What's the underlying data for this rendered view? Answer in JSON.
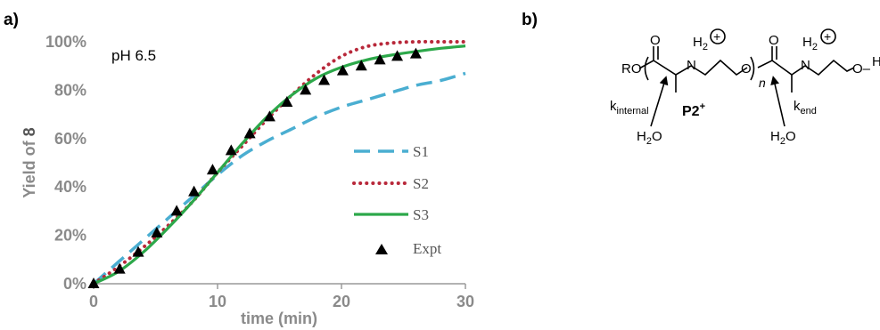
{
  "panels": {
    "a": "a)",
    "b": "b)"
  },
  "chart_data": {
    "type": "line",
    "annotation": "pH 6.5",
    "xlabel": "time (min)",
    "ylabel_prefix": "Yield of ",
    "ylabel_bold": "8",
    "xlim": [
      0,
      30
    ],
    "ylim": [
      0,
      100
    ],
    "xticks": [
      0,
      10,
      20,
      30
    ],
    "yticks": [
      0,
      20,
      40,
      60,
      80,
      100
    ],
    "ytick_labels": [
      "0%",
      "20%",
      "40%",
      "60%",
      "80%",
      "100%"
    ],
    "grid": false,
    "legend_position": "right",
    "series": [
      {
        "name": "S1",
        "style": "dashed",
        "color": "#4aaed1",
        "x": [
          0,
          2,
          4,
          6,
          8,
          10,
          12,
          14,
          16,
          18,
          20,
          22,
          24,
          26,
          28,
          30
        ],
        "y": [
          0,
          9,
          18,
          27,
          36,
          45,
          53,
          59,
          64,
          69,
          73,
          76,
          79,
          82,
          84,
          87
        ]
      },
      {
        "name": "S2",
        "style": "dotted",
        "color": "#b8283a",
        "x": [
          0,
          2,
          4,
          6,
          8,
          10,
          12,
          14,
          16,
          18,
          20,
          22,
          24,
          26,
          28,
          30
        ],
        "y": [
          0,
          7,
          15,
          24,
          34,
          46,
          57,
          68,
          78,
          87,
          94,
          98,
          99.5,
          100,
          100,
          100
        ]
      },
      {
        "name": "S3",
        "style": "solid",
        "color": "#2ca84a",
        "x": [
          0,
          2,
          4,
          6,
          8,
          10,
          12,
          14,
          16,
          18,
          20,
          22,
          24,
          26,
          28,
          30
        ],
        "y": [
          0,
          5,
          13,
          23,
          34,
          46,
          58,
          69,
          78,
          85,
          89.5,
          92.5,
          94.5,
          96,
          97.3,
          98.3
        ]
      },
      {
        "name": "Expt",
        "style": "marker",
        "color": "#000000",
        "x": [
          0,
          2.1,
          3.6,
          5.1,
          6.7,
          8.1,
          9.6,
          11.1,
          12.6,
          14.2,
          15.6,
          17.1,
          18.6,
          20.1,
          21.6,
          23.1,
          24.5,
          26.0
        ],
        "y": [
          0,
          6,
          13,
          21,
          30,
          38,
          47,
          55,
          62,
          69,
          75,
          80,
          84,
          88,
          90,
          92.5,
          94,
          95
        ]
      }
    ]
  },
  "structure": {
    "label": "P2",
    "label_charge": "+",
    "ro": "RO",
    "o_atoms": [
      "O",
      "O"
    ],
    "o_ether": "O",
    "o_end": "O–",
    "h2": [
      "H",
      "H"
    ],
    "h2_sub": [
      "2",
      "2"
    ],
    "n_atoms": [
      "N",
      "N"
    ],
    "n_repeat": "n",
    "charge": [
      "+",
      "+"
    ],
    "end_atom": "H",
    "k_internal_main": "k",
    "k_internal_sub": "internal",
    "k_end_main": "k",
    "k_end_sub": "end",
    "water_1": "H",
    "water_1_sub": "2",
    "water_1_tail": "O",
    "water_2": "H",
    "water_2_sub": "2",
    "water_2_tail": "O"
  }
}
